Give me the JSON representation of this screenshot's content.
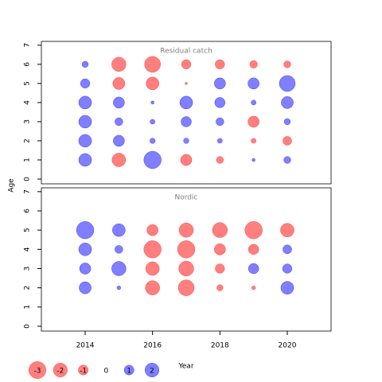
{
  "chart_data": [
    {
      "type": "bubble",
      "title": "Residual catch",
      "ylabel": "Age",
      "x": [
        2014,
        2015,
        2016,
        2017,
        2018,
        2019,
        2020
      ],
      "ages": [
        1,
        2,
        3,
        4,
        5,
        6
      ],
      "values": [
        [
          1.7,
          -1.9,
          3.1,
          -1.3,
          -0.5,
          0.1,
          0.5
        ],
        [
          1.7,
          1.3,
          0.3,
          0.3,
          0.25,
          -0.25,
          -0.8
        ],
        [
          1.7,
          0.65,
          0.25,
          1.1,
          0.65,
          -1.3,
          0.4
        ],
        [
          1.7,
          1.3,
          0.1,
          1.7,
          1.1,
          0.25,
          1.5
        ],
        [
          0.9,
          -1.5,
          -1.7,
          -0.06,
          1.3,
          1.3,
          2.6
        ],
        [
          0.4,
          -2.1,
          -2.6,
          -0.9,
          -0.9,
          -0.6,
          -0.5
        ]
      ],
      "xlim": [
        2012.7,
        2021.3
      ],
      "ylim": [
        -0.25,
        7.2
      ],
      "yticks": [
        0,
        1,
        2,
        3,
        4,
        5,
        6,
        7
      ],
      "negative_color": "#ff0000",
      "positive_color": "#0000ff"
    },
    {
      "type": "bubble",
      "title": "Nordic",
      "xlabel": "Year",
      "x": [
        2014,
        2015,
        2016,
        2017,
        2018,
        2019,
        2020
      ],
      "ages": [
        2,
        3,
        4,
        5
      ],
      "values": [
        [
          1.5,
          0.15,
          -2.1,
          -2.6,
          -0.4,
          -0.15,
          1.7
        ],
        [
          1.3,
          2.1,
          -1.9,
          -2.3,
          -0.9,
          1.1,
          0.9
        ],
        [
          1.7,
          0.65,
          -3.1,
          -3.1,
          -1.3,
          -1.1,
          0.8
        ],
        [
          3.1,
          1.7,
          -1.3,
          -2.1,
          -2.3,
          -3.1,
          -1.9
        ]
      ],
      "xlim": [
        2012.7,
        2021.3
      ],
      "xticks": [
        2014,
        2016,
        2018,
        2020
      ],
      "ylim": [
        -0.25,
        7.2
      ],
      "yticks": [
        0,
        1,
        2,
        3,
        4,
        5,
        6,
        7
      ],
      "legend": [
        -3,
        -2,
        -1,
        0,
        1,
        2
      ],
      "negative_color": "#ff0000",
      "positive_color": "#0000ff"
    }
  ]
}
